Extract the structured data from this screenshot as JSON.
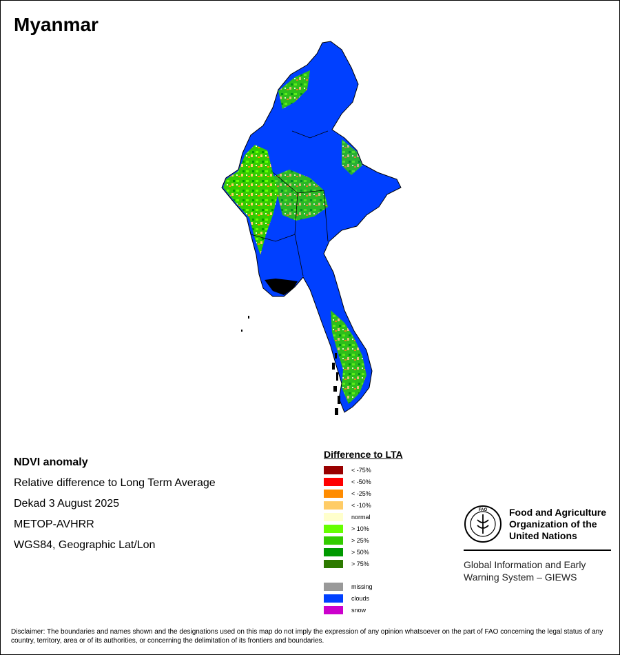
{
  "title": "Myanmar",
  "info": {
    "heading": "NDVI anomaly",
    "lines": [
      "Relative difference to Long Term Average",
      "Dekad 3 August 2025",
      "METOP-AVHRR",
      "WGS84, Geographic Lat/Lon"
    ]
  },
  "legend": {
    "title": "Difference to LTA",
    "items": [
      {
        "label": "< -75%",
        "color": "#990000"
      },
      {
        "label": "< -50%",
        "color": "#ff0000"
      },
      {
        "label": "< -25%",
        "color": "#ff8c00"
      },
      {
        "label": "< -10%",
        "color": "#ffcc66"
      },
      {
        "label": "normal",
        "color": "#ffffcc"
      },
      {
        "label": "> 10%",
        "color": "#66ff00"
      },
      {
        "label": "> 25%",
        "color": "#33cc00"
      },
      {
        "label": "> 50%",
        "color": "#009900"
      },
      {
        "label": "> 75%",
        "color": "#2d7a00"
      }
    ],
    "extra": [
      {
        "label": "missing",
        "color": "#999999"
      },
      {
        "label": "clouds",
        "color": "#0040ff"
      },
      {
        "label": "snow",
        "color": "#cc00cc"
      }
    ]
  },
  "org": {
    "name_lines": [
      "Food and Agriculture",
      "Organization of the",
      "United Nations"
    ],
    "sub_lines": [
      "Global Information and Early",
      "Warning System – GIEWS"
    ]
  },
  "disclaimer": "Disclaimer: The boundaries and names shown and the designations used on this map do not imply the expression of any opinion whatsoever on the part of FAO concerning the legal status of any country, territory, area or of its authorities, or concerning the delimitation of its frontiers and boundaries."
}
